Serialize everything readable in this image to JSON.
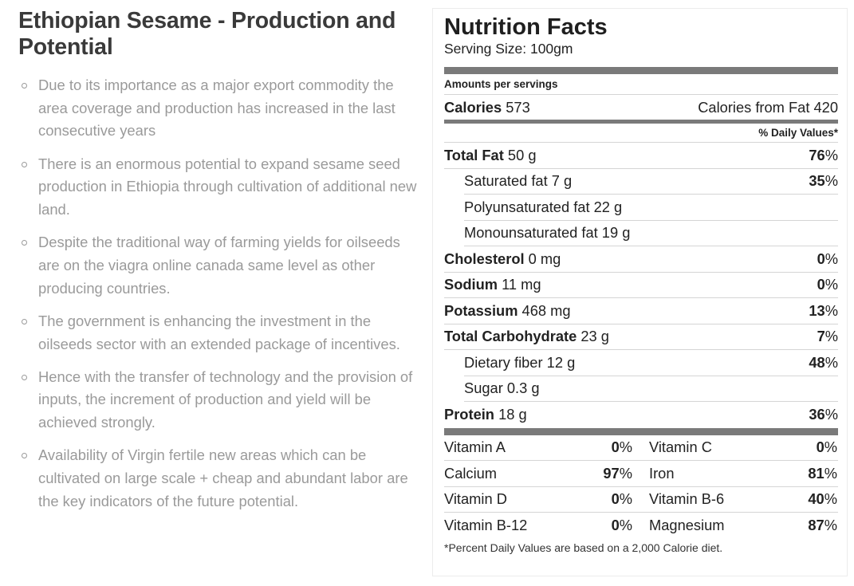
{
  "article": {
    "title": "Ethiopian Sesame - Production and Potential",
    "bullets": [
      "Due to its importance as a major export commodity the area coverage and production has increased in the last consecutive years",
      "There is an enormous potential to expand sesame seed production in Ethiopia through cultivation of additional new land.",
      "Despite the traditional way of farming yields for oilseeds are on the viagra online canada same level as other producing countries.",
      "The government is enhancing the investment in the oilseeds sector with an extended package of incentives.",
      "Hence with the transfer of technology and the provision of inputs, the increment of production and yield will be achieved strongly.",
      "Availability of Virgin fertile new areas which can be cultivated on large scale + cheap and abundant labor are the key indicators of the future potential."
    ]
  },
  "nutrition": {
    "title": "Nutrition Facts",
    "serving": "Serving Size: 100gm",
    "amounts_label": "Amounts per servings",
    "calories_label": "Calories",
    "calories_value": "573",
    "calories_fat": "Calories from Fat 420",
    "dv_header": "% Daily Values*",
    "rows": [
      {
        "label": "Total Fat",
        "amount": "50 g",
        "pct": "76",
        "bold": true
      },
      {
        "label": "Saturated fat",
        "amount": "7 g",
        "pct": "35",
        "bold": false
      },
      {
        "label": "Polyunsaturated fat",
        "amount": "22 g",
        "pct": "",
        "bold": false
      },
      {
        "label": "Monounsaturated fat",
        "amount": "19 g",
        "pct": "",
        "bold": false
      },
      {
        "label": "Cholesterol",
        "amount": "0 mg",
        "pct": "0",
        "bold": true
      },
      {
        "label": "Sodium",
        "amount": "11 mg",
        "pct": "0",
        "bold": true
      },
      {
        "label": "Potassium",
        "amount": "468 mg",
        "pct": "13",
        "bold": true
      },
      {
        "label": "Total Carbohydrate",
        "amount": "23 g",
        "pct": "7",
        "bold": true
      },
      {
        "label": "Dietary fiber",
        "amount": "12 g",
        "pct": "48",
        "bold": false
      },
      {
        "label": "Sugar",
        "amount": "0.3 g",
        "pct": "",
        "bold": false
      },
      {
        "label": "Protein",
        "amount": "18 g",
        "pct": "36",
        "bold": true
      }
    ],
    "vitamins": [
      [
        {
          "name": "Vitamin A",
          "pct": "0"
        },
        {
          "name": "Vitamin C",
          "pct": "0"
        }
      ],
      [
        {
          "name": "Calcium",
          "pct": "97"
        },
        {
          "name": "Iron",
          "pct": "81"
        }
      ],
      [
        {
          "name": "Vitamin D",
          "pct": "0"
        },
        {
          "name": "Vitamin B-6",
          "pct": "40"
        }
      ],
      [
        {
          "name": "Vitamin B-12",
          "pct": "0"
        },
        {
          "name": "Magnesium",
          "pct": "87"
        }
      ]
    ],
    "pct_sign": "%",
    "footnote": "*Percent Daily Values are based on a 2,000 Calorie diet."
  }
}
